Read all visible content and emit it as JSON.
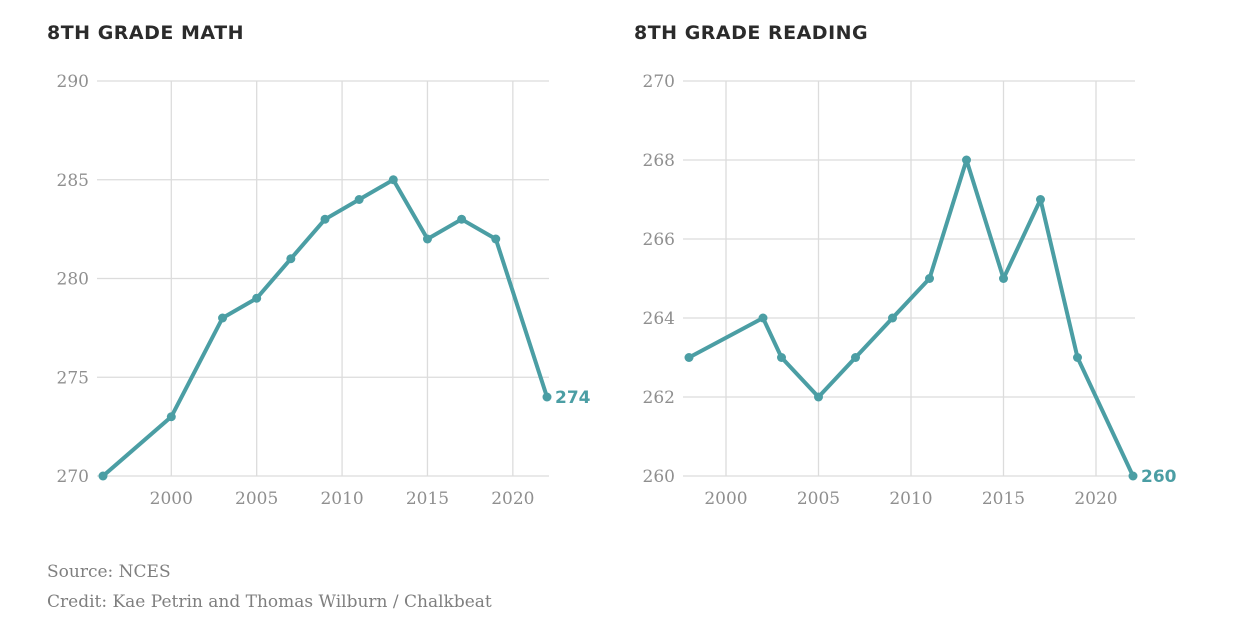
{
  "colors": {
    "line": "#4b9ea4",
    "grid": "#dcdcdc",
    "tick": "#8f8f8f",
    "title": "#2b2b2b"
  },
  "chart_data": [
    {
      "type": "line",
      "title": "8TH GRADE MATH",
      "xlim": [
        1996,
        2022
      ],
      "ylim": [
        270,
        290
      ],
      "xticks": [
        2000,
        2005,
        2010,
        2015,
        2020
      ],
      "yticks": [
        290,
        285,
        280,
        275,
        270
      ],
      "x": [
        1996,
        2000,
        2003,
        2005,
        2007,
        2009,
        2011,
        2013,
        2015,
        2017,
        2019,
        2022
      ],
      "y": [
        270,
        273,
        278,
        279,
        281,
        283,
        284,
        285,
        282,
        283,
        282,
        274
      ],
      "end_label": "274"
    },
    {
      "type": "line",
      "title": "8TH GRADE READING",
      "xlim": [
        1998,
        2022
      ],
      "ylim": [
        260,
        270
      ],
      "xticks": [
        2000,
        2005,
        2010,
        2015,
        2020
      ],
      "yticks": [
        270,
        268,
        266,
        264,
        262,
        260
      ],
      "x": [
        1998,
        2002,
        2003,
        2005,
        2007,
        2009,
        2011,
        2013,
        2015,
        2017,
        2019,
        2022
      ],
      "y": [
        263,
        264,
        263,
        262,
        263,
        264,
        265,
        268,
        265,
        267,
        263,
        260
      ],
      "end_label": "260"
    }
  ],
  "footer": {
    "source": "Source: NCES",
    "credit": "Credit: Kae Petrin and Thomas Wilburn / Chalkbeat"
  }
}
